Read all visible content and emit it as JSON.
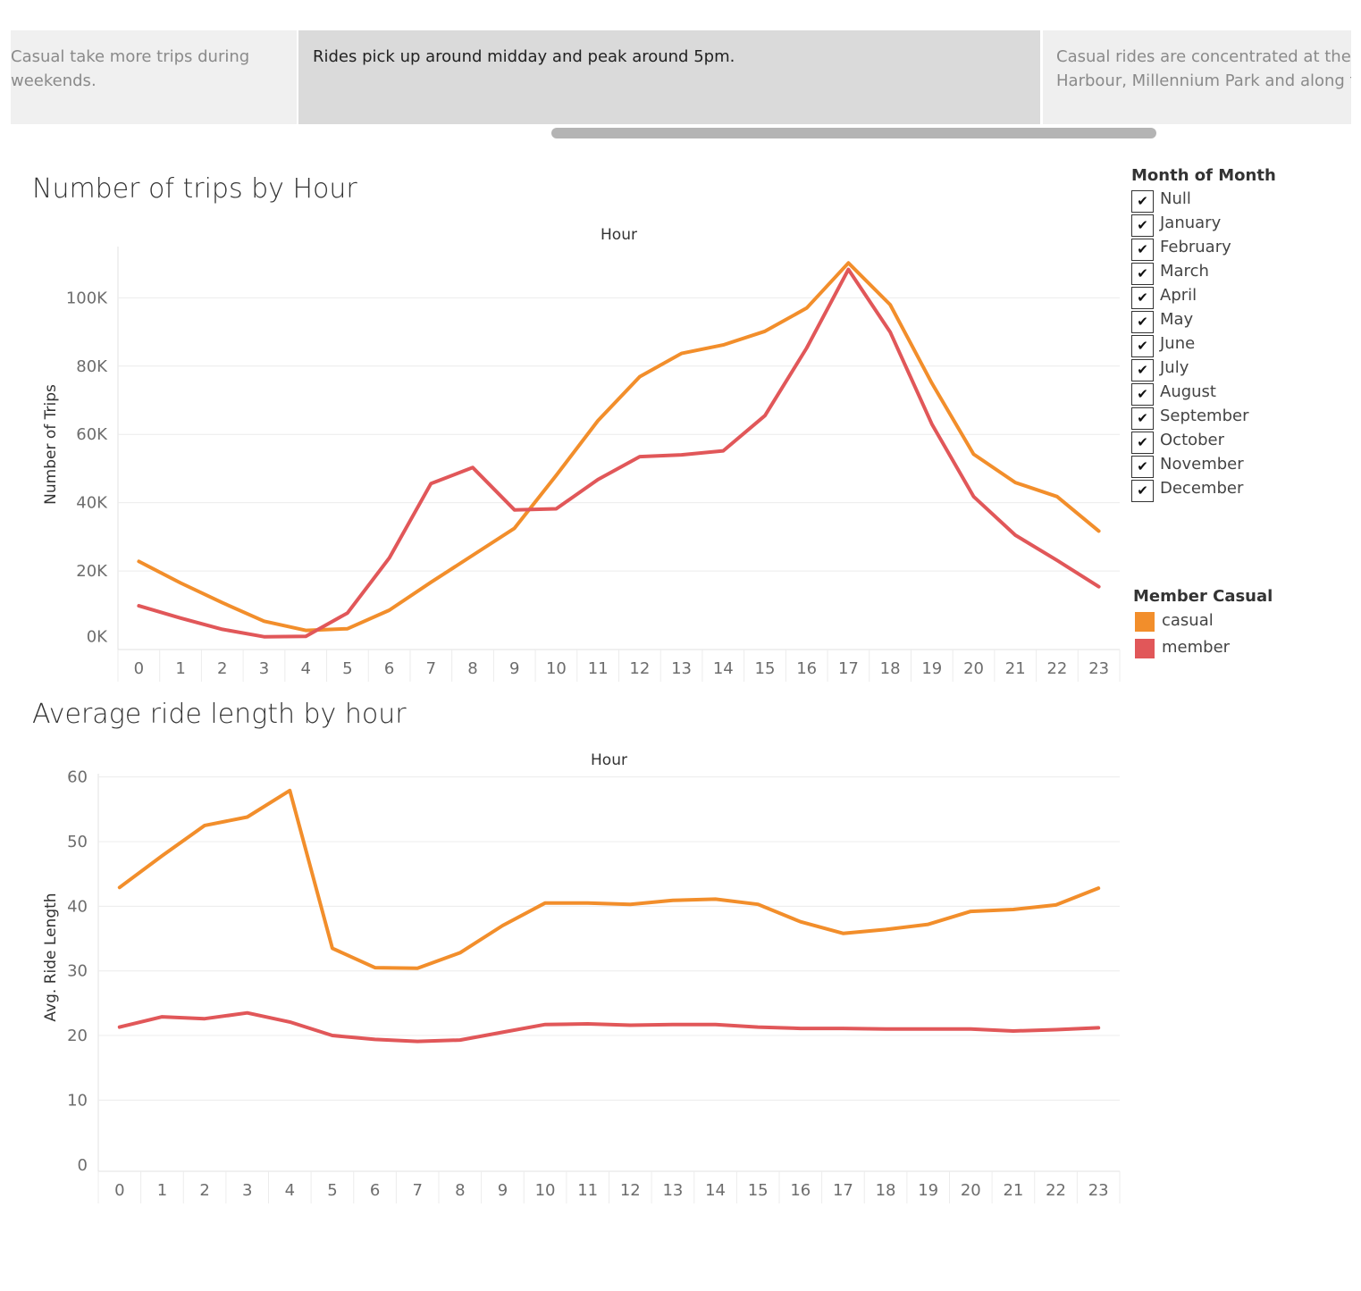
{
  "story": {
    "points": [
      {
        "line1": "Casual take more trips during",
        "line2": "weekends."
      },
      {
        "line1": "Rides pick up around midday and peak around 5pm.",
        "line2": ""
      },
      {
        "line1": "Casual rides are concentrated at the",
        "line2": "Harbour,  Millennium Park and along t.."
      }
    ]
  },
  "colors": {
    "casual": "#f28e2b",
    "member": "#e15759",
    "gridline": "#ececec"
  },
  "filters": {
    "title": "Month of Month",
    "items": [
      "Null",
      "January",
      "February",
      "March",
      "April",
      "May",
      "June",
      "July",
      "August",
      "September",
      "October",
      "November",
      "December"
    ],
    "checkmark": "✔"
  },
  "legend": {
    "title": "Member Casual",
    "items": [
      {
        "label": "casual",
        "color": "#f28e2b"
      },
      {
        "label": "member",
        "color": "#e15759"
      }
    ]
  },
  "chart_data": [
    {
      "type": "line",
      "title": "Number of trips by Hour",
      "xlabel": "Hour",
      "ylabel": "Number of Trips",
      "x": [
        0,
        1,
        2,
        3,
        4,
        5,
        6,
        7,
        8,
        9,
        10,
        11,
        12,
        13,
        14,
        15,
        16,
        17,
        18,
        19,
        20,
        21,
        22,
        23
      ],
      "yticks": [
        0,
        20000,
        40000,
        60000,
        80000,
        100000
      ],
      "yticklabels": [
        "0K",
        "20K",
        "40K",
        "60K",
        "80K",
        "100K"
      ],
      "ylim": [
        -3000,
        115000
      ],
      "grid": true,
      "series": [
        {
          "name": "casual",
          "values": [
            22800,
            16500,
            10700,
            5300,
            2600,
            3100,
            8500,
            16700,
            24600,
            32500,
            48000,
            64000,
            76900,
            83700,
            86200,
            90200,
            97000,
            110200,
            98000,
            75000,
            54200,
            45900,
            41800,
            31700
          ]
        },
        {
          "name": "member",
          "values": [
            9800,
            6200,
            2900,
            750,
            880,
            7700,
            23800,
            45600,
            50300,
            37900,
            38200,
            46800,
            53500,
            54000,
            55200,
            65500,
            85300,
            108300,
            90000,
            63000,
            41800,
            30500,
            23100,
            15400
          ]
        }
      ]
    },
    {
      "type": "line",
      "title": "Average ride length by hour",
      "xlabel": "Hour",
      "ylabel": "Avg. Ride Length",
      "x": [
        0,
        1,
        2,
        3,
        4,
        5,
        6,
        7,
        8,
        9,
        10,
        11,
        12,
        13,
        14,
        15,
        16,
        17,
        18,
        19,
        20,
        21,
        22,
        23
      ],
      "yticks": [
        0,
        10,
        20,
        30,
        40,
        50,
        60
      ],
      "yticklabels": [
        "0",
        "10",
        "20",
        "30",
        "40",
        "50",
        "60"
      ],
      "ylim": [
        -1,
        60.5
      ],
      "grid": true,
      "series": [
        {
          "name": "casual",
          "values": [
            42.9,
            47.8,
            52.5,
            53.8,
            57.9,
            33.5,
            30.5,
            30.4,
            32.8,
            37.0,
            40.5,
            40.5,
            40.3,
            40.9,
            41.1,
            40.3,
            37.6,
            35.8,
            36.4,
            37.2,
            39.2,
            39.5,
            40.2,
            42.8
          ]
        },
        {
          "name": "member",
          "values": [
            21.3,
            22.9,
            22.6,
            23.5,
            22.1,
            20.0,
            19.4,
            19.1,
            19.3,
            20.5,
            21.7,
            21.8,
            21.6,
            21.7,
            21.7,
            21.3,
            21.1,
            21.1,
            21.0,
            21.0,
            21.0,
            20.7,
            20.9,
            21.2
          ]
        }
      ]
    }
  ]
}
